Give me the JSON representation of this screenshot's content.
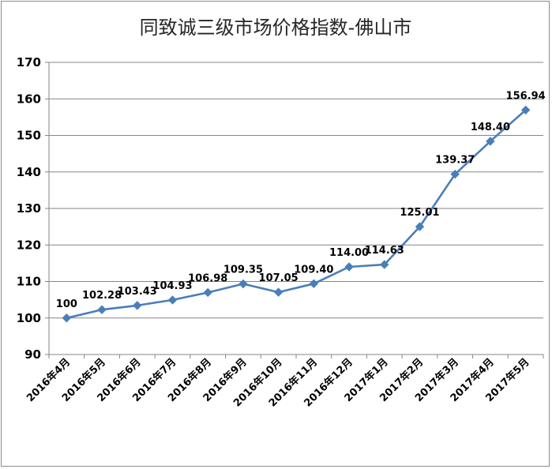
{
  "chart_data": {
    "type": "line",
    "title": "同致诚三级市场价格指数-佛山市",
    "categories": [
      "2016年4月",
      "2016年5月",
      "2016年6月",
      "2016年7月",
      "2016年8月",
      "2016年9月",
      "2016年10月",
      "2016年11月",
      "2016年12月",
      "2017年1月",
      "2017年2月",
      "2017年3月",
      "2017年4月",
      "2017年5月"
    ],
    "series": [
      {
        "values": [
          100,
          102.28,
          103.43,
          104.93,
          106.98,
          109.35,
          107.05,
          109.4,
          114.0,
          114.63,
          125.01,
          139.37,
          148.4,
          156.94
        ],
        "labels": [
          "100",
          "102.28",
          "103.43",
          "104.93",
          "106.98",
          "109.35",
          "107.05",
          "109.40",
          "114.00",
          "114.63",
          "125.01",
          "139.37",
          "148.40",
          "156.94"
        ]
      }
    ],
    "ylim": [
      90,
      170
    ],
    "yticks": [
      90,
      100,
      110,
      120,
      130,
      140,
      150,
      160,
      170
    ],
    "grid": true,
    "legend": "none",
    "colors": {
      "line": "#4a7ebb",
      "marker": "#4a7ebb",
      "grid": "#868686"
    }
  }
}
